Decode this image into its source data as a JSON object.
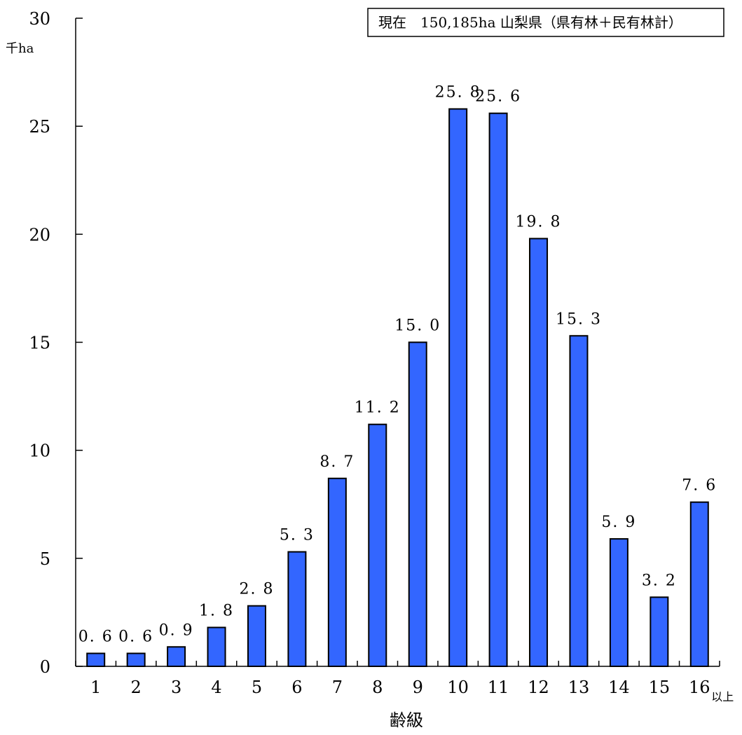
{
  "chart_data": {
    "type": "bar",
    "title": "",
    "legend_text": "現在　150,185ha 山梨県（県有林＋民有林計）",
    "legend_position": "top-right",
    "categories": [
      "1",
      "2",
      "3",
      "4",
      "5",
      "6",
      "7",
      "8",
      "9",
      "10",
      "11",
      "12",
      "13",
      "14",
      "15",
      "16"
    ],
    "values": [
      0.6,
      0.6,
      0.9,
      1.8,
      2.8,
      5.3,
      8.7,
      11.2,
      15.0,
      25.8,
      25.6,
      19.8,
      15.3,
      5.9,
      3.2,
      7.6
    ],
    "value_labels": [
      "0. 6",
      "0. 6",
      "0. 9",
      "1. 8",
      "2. 8",
      "5. 3",
      "8. 7",
      "11. 2",
      "15. 0",
      "25. 8",
      "25. 6",
      "19. 8",
      "15. 3",
      "5. 9",
      "3. 2",
      "7. 6"
    ],
    "last_category_suffix": "以上",
    "xlabel": "齢級",
    "ylabel": "千ha",
    "ylim": [
      0,
      30
    ],
    "yticks": [
      0,
      5,
      10,
      15,
      20,
      25,
      30
    ],
    "grid": false,
    "bar_color": "#3366ff",
    "bar_edge_color": "#000000"
  }
}
